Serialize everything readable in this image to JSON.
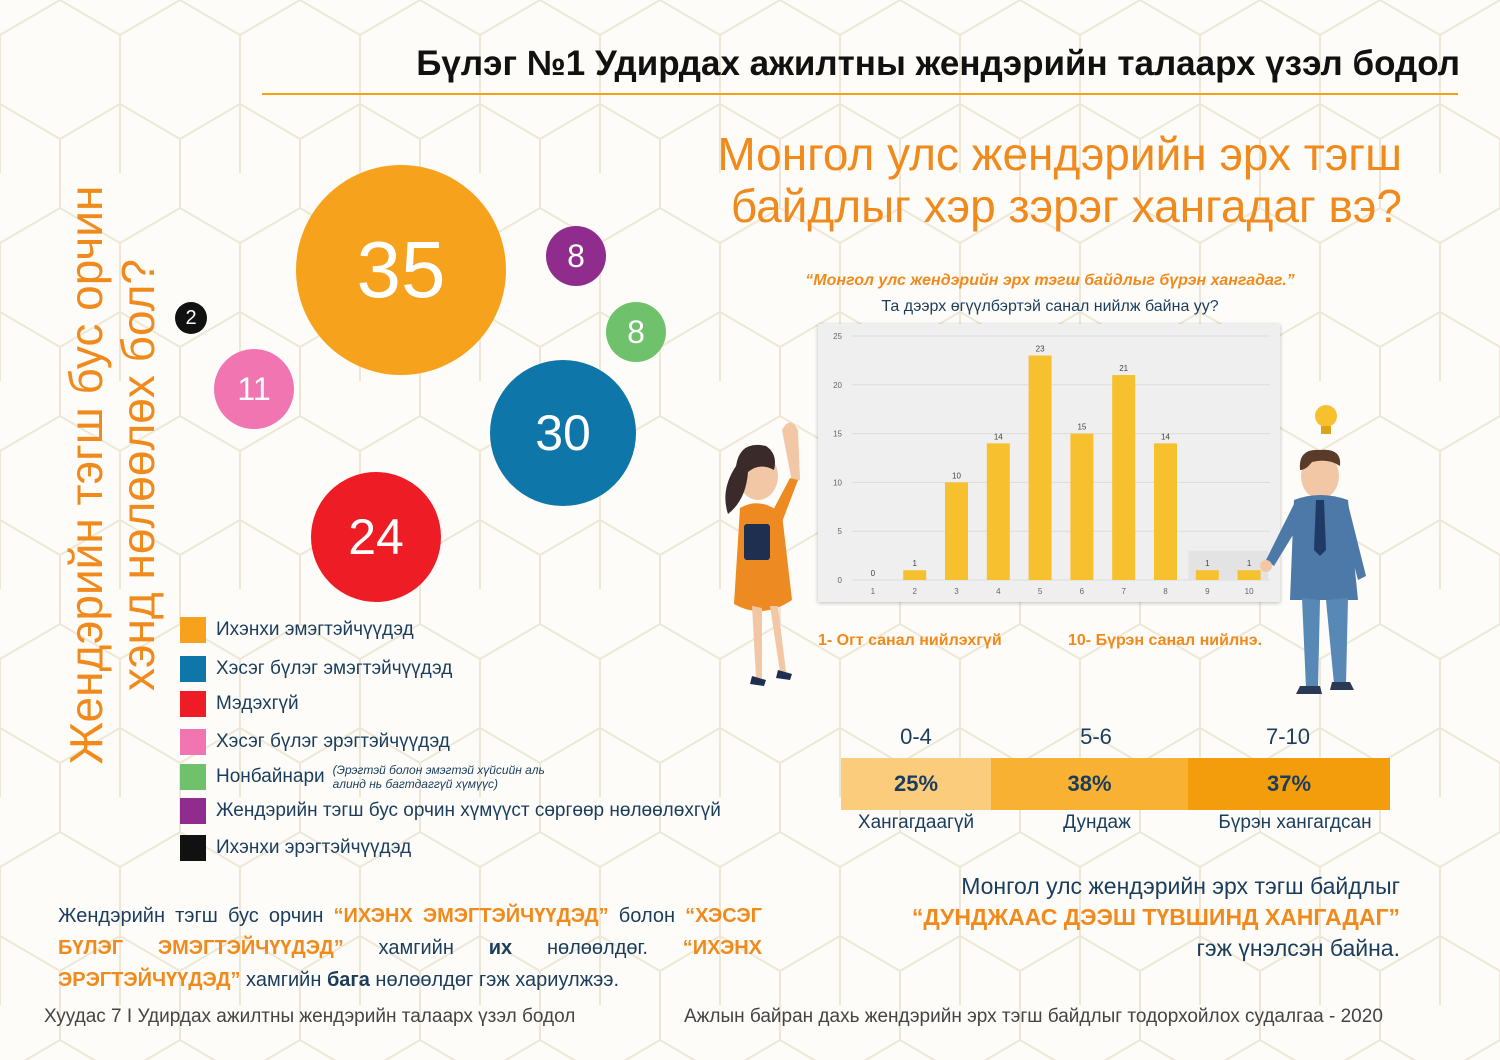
{
  "header": {
    "title": "Бүлэг №1 Удирдах ажилтны жендэрийн талаарх үзэл бодол"
  },
  "left": {
    "vertical_question": "Жендэрийн тэгш бус орчин хэнд нөлөөлөх бол?",
    "bubbles": [
      {
        "value": "35",
        "color": "#f6a21c"
      },
      {
        "value": "30",
        "color": "#0e76a8"
      },
      {
        "value": "24",
        "color": "#ee1c25"
      },
      {
        "value": "11",
        "color": "#f075b0"
      },
      {
        "value": "8",
        "color": "#912c8f"
      },
      {
        "value": "8",
        "color": "#6fc16b"
      },
      {
        "value": "2",
        "color": "#111111"
      }
    ],
    "legend": [
      {
        "label": "Ихэнхи эмэгтэйчүүдэд",
        "color": "#f6a21c"
      },
      {
        "label": "Хэсэг бүлэг эмэгтэйчүүдэд",
        "color": "#0e76a8"
      },
      {
        "label": "Мэдэхгүй",
        "color": "#ee1c25"
      },
      {
        "label": "Хэсэг бүлэг эрэгтэйчүүдэд",
        "color": "#f075b0"
      },
      {
        "label": "Нонбайнари",
        "note": "(Эрэгтэй болон эмэгтэй хүйсийн аль алинд нь багтдаггүй хүмүүс)",
        "color": "#6fc16b"
      },
      {
        "label": "Жендэрийн тэгш бус орчин хүмүүст сөргөөр нөлөөлөхгүй",
        "color": "#912c8f"
      },
      {
        "label": "Ихэнхи эрэгтэйчүүдэд",
        "color": "#111111"
      }
    ],
    "summary": {
      "p1": "Жендэрийн тэгш бус орчин ",
      "h1": "“ИХЭНХ ЭМЭГТЭЙЧҮҮДЭД”",
      "p2": " болон ",
      "h2": "“ХЭСЭГ БҮЛЭГ ЭМЭГТЭЙЧҮҮДЭД”",
      "p3": " хамгийн ",
      "b1": "их",
      "p4": " нөлөөлдөг. ",
      "h3": "“ИХЭНХ ЭРЭГТЭЙЧҮҮДЭД”",
      "p5": " хамгийн ",
      "b2": "бага",
      "p6": " нөлөөлдөг гэж хариулжээ."
    }
  },
  "right": {
    "question": "Монгол улс жендэрийн эрх тэгш байдлыг хэр зэрэг хангадаг вэ?",
    "chart_quote": "“Монгол улс жендэрийн эрх тэгш байдлыг бүрэн хангадаг.”",
    "chart_sub": "Та дээрх өгүүлбэртэй санал нийлж байна уу?",
    "scale_left": "1- Огт санал нийлэхгүй",
    "scale_right": "10- Бүрэн санал нийлнэ.",
    "ranges": [
      {
        "head": "0-4",
        "pct": "25%",
        "foot": "Хангагдаагүй",
        "color": "#fbcc7c"
      },
      {
        "head": "5-6",
        "pct": "38%",
        "foot": "Дундаж",
        "color": "#f8b132"
      },
      {
        "head": "7-10",
        "pct": "37%",
        "foot": "Бүрэн хангагдсан",
        "color": "#f39c0c"
      }
    ],
    "summary": {
      "l1": "Монгол улс жендэрийн эрх тэгш байдлыг",
      "l2": "“ДУНДЖААС ДЭЭШ ТҮВШИНД ХАНГАДАГ”",
      "l3": "гэж үнэлсэн байна."
    }
  },
  "chart_data": {
    "type": "bar",
    "categories": [
      "1",
      "2",
      "3",
      "4",
      "5",
      "6",
      "7",
      "8",
      "9",
      "10"
    ],
    "values": [
      0,
      1,
      10,
      14,
      23,
      15,
      21,
      14,
      1,
      1
    ],
    "ylim": [
      0,
      25
    ],
    "yticks": [
      0,
      5,
      10,
      15,
      20,
      25
    ],
    "bar_color": "#f7c02f",
    "highlight_color": "#e3e3e3",
    "grid": true
  },
  "footer": {
    "left": "Хуудас 7 I Удирдах ажилтны жендэрийн талаарх үзэл бодол",
    "right": "Ажлын байран дахь жендэрийн эрх  тэгш байдлыг тодорхойлох судалгаа - 2020"
  }
}
